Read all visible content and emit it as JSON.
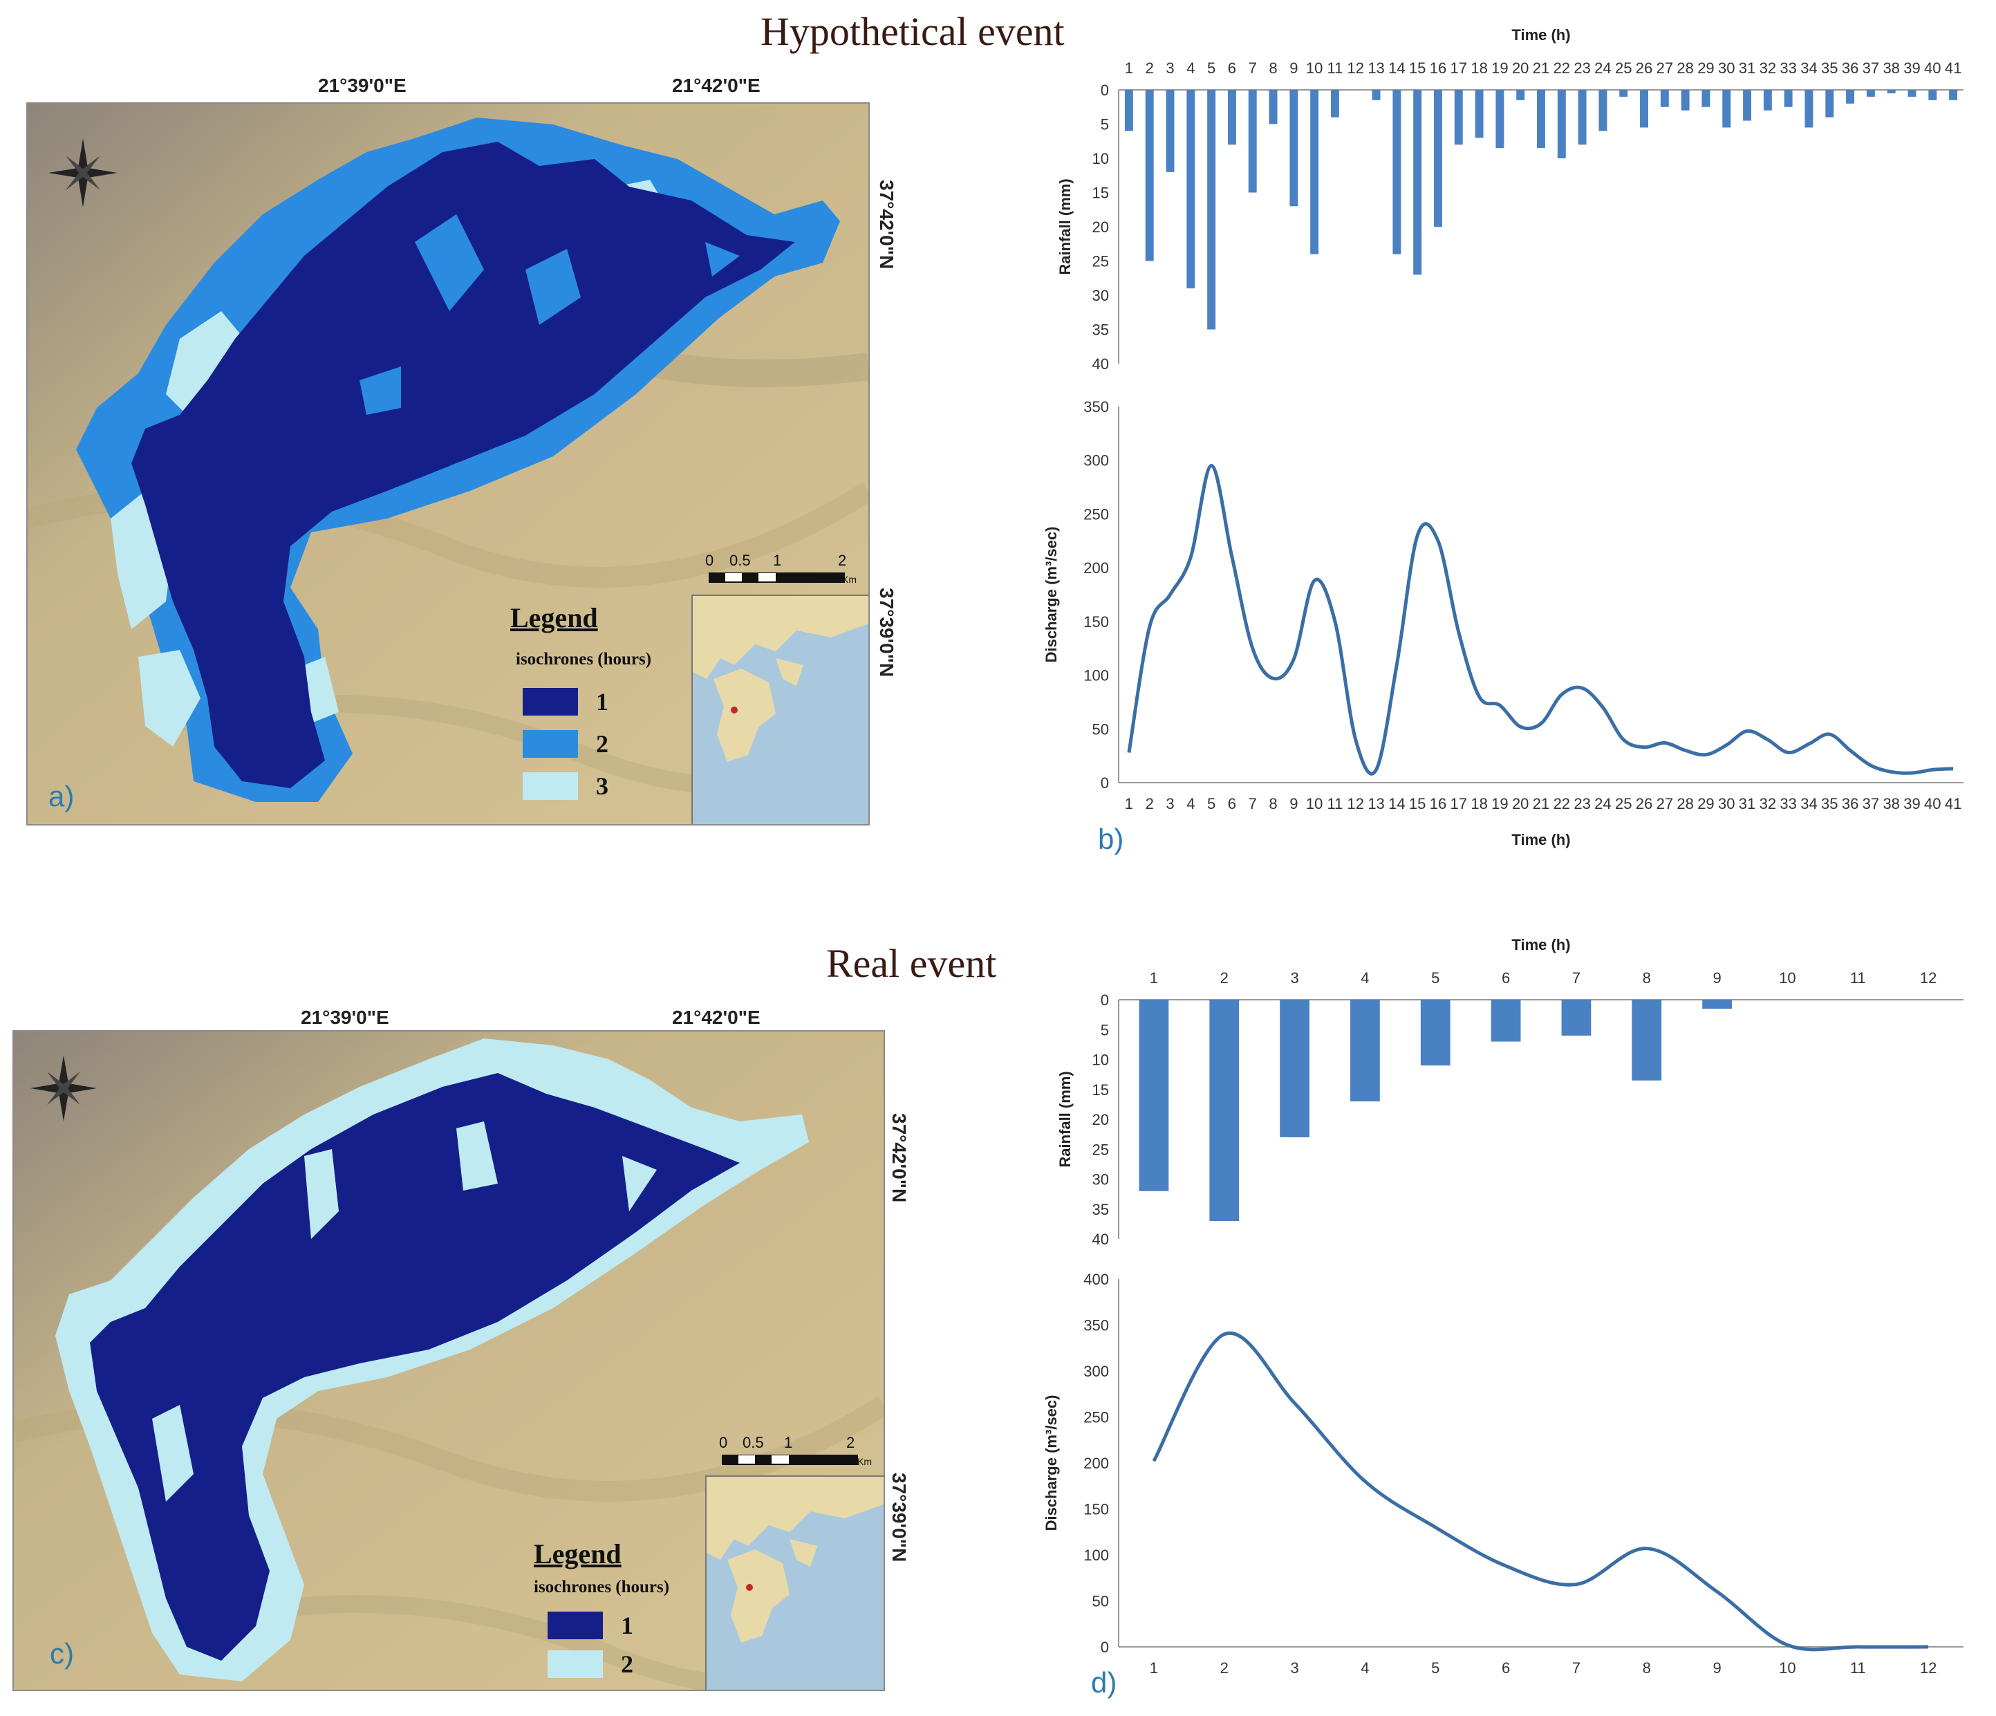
{
  "titles": {
    "top": "Hypothetical event",
    "bottom": "Real event"
  },
  "panel_letters": {
    "a": "a)",
    "b": "b)",
    "c": "c)",
    "d": "d)"
  },
  "map_labels": {
    "lon_left": "21°39'0\"E",
    "lon_right": "21°42'0\"E",
    "lat_top": "37°42'0\"N",
    "lat_bottom": "37°39'0\"N",
    "scale": {
      "s0": "0",
      "s1": "0.5",
      "s2": "1",
      "s3": "2",
      "unit": "Km"
    }
  },
  "legend_a": {
    "title": "Legend",
    "subtitle": "isochrones (hours)",
    "items": [
      {
        "label": "1",
        "color": "#151f8a"
      },
      {
        "label": "2",
        "color": "#2a8be0"
      },
      {
        "label": "3",
        "color": "#bfeaf2"
      }
    ]
  },
  "legend_c": {
    "title": "Legend",
    "subtitle": "isochrones (hours)",
    "items": [
      {
        "label": "1",
        "color": "#151f8a"
      },
      {
        "label": "2",
        "color": "#bfeaf2"
      }
    ]
  },
  "colors": {
    "bar": "#4a81c2",
    "line": "#3a6ea5",
    "terrain": "#cdbb8f"
  },
  "chart_data": [
    {
      "id": "b_rain",
      "type": "bar",
      "orientation": "inverted",
      "xlabel": "Time (h)",
      "ylabel": "Rainfall (mm)",
      "ylim": [
        0,
        40
      ],
      "yticks": [
        0,
        5,
        10,
        15,
        20,
        25,
        30,
        35,
        40
      ],
      "categories": [
        "1",
        "2",
        "3",
        "4",
        "5",
        "6",
        "7",
        "8",
        "9",
        "10",
        "11",
        "12",
        "13",
        "14",
        "15",
        "16",
        "17",
        "18",
        "19",
        "20",
        "21",
        "22",
        "23",
        "24",
        "25",
        "26",
        "27",
        "28",
        "29",
        "30",
        "31",
        "32",
        "33",
        "34",
        "35",
        "36",
        "37",
        "38",
        "39",
        "40",
        "41"
      ],
      "values": [
        6,
        25,
        12,
        29,
        35,
        8,
        15,
        5,
        17,
        24,
        4,
        0,
        1.5,
        24,
        27,
        20,
        8,
        7,
        8.5,
        1.5,
        8.5,
        10,
        8,
        6,
        1,
        5.5,
        2.5,
        3,
        2.5,
        5.5,
        4.5,
        3,
        2.5,
        5.5,
        4,
        2,
        1,
        0.5,
        1,
        1.5,
        1.5
      ]
    },
    {
      "id": "b_discharge",
      "type": "line",
      "xlabel": "Time (h)",
      "ylabel": "Discharge (m³/sec)",
      "ylim": [
        0,
        350
      ],
      "yticks": [
        0,
        50,
        100,
        150,
        200,
        250,
        300,
        350
      ],
      "categories": [
        "1",
        "2",
        "3",
        "4",
        "5",
        "6",
        "7",
        "8",
        "9",
        "10",
        "11",
        "12",
        "13",
        "14",
        "15",
        "16",
        "17",
        "18",
        "19",
        "20",
        "21",
        "22",
        "23",
        "24",
        "25",
        "26",
        "27",
        "28",
        "29",
        "30",
        "31",
        "32",
        "33",
        "34",
        "35",
        "36",
        "37",
        "38",
        "39",
        "40",
        "41"
      ],
      "values": [
        28,
        145,
        175,
        210,
        295,
        210,
        125,
        97,
        115,
        188,
        150,
        40,
        12,
        110,
        230,
        225,
        140,
        80,
        72,
        52,
        55,
        82,
        88,
        70,
        40,
        33,
        37,
        30,
        26,
        35,
        48,
        40,
        28,
        36,
        45,
        30,
        16,
        10,
        9,
        12,
        13
      ]
    },
    {
      "id": "d_rain",
      "type": "bar",
      "orientation": "inverted",
      "xlabel": "Time (h)",
      "ylabel": "Rainfall (mm)",
      "ylim": [
        0,
        40
      ],
      "yticks": [
        0,
        5,
        10,
        15,
        20,
        25,
        30,
        35,
        40
      ],
      "categories": [
        "1",
        "2",
        "3",
        "4",
        "5",
        "6",
        "7",
        "8",
        "9",
        "10",
        "11",
        "12"
      ],
      "values": [
        32,
        37,
        23,
        17,
        11,
        7,
        6,
        13.5,
        1.5,
        0,
        0,
        0
      ]
    },
    {
      "id": "d_discharge",
      "type": "line",
      "xlabel": "",
      "ylabel": "Discharge (m³/sec)",
      "ylim": [
        0,
        400
      ],
      "yticks": [
        0,
        50,
        100,
        150,
        200,
        250,
        300,
        350,
        400
      ],
      "categories": [
        "1",
        "2",
        "3",
        "4",
        "5",
        "6",
        "7",
        "8",
        "9",
        "10",
        "11",
        "12"
      ],
      "values": [
        202,
        340,
        265,
        180,
        130,
        88,
        68,
        107,
        60,
        2,
        0,
        0
      ]
    }
  ]
}
